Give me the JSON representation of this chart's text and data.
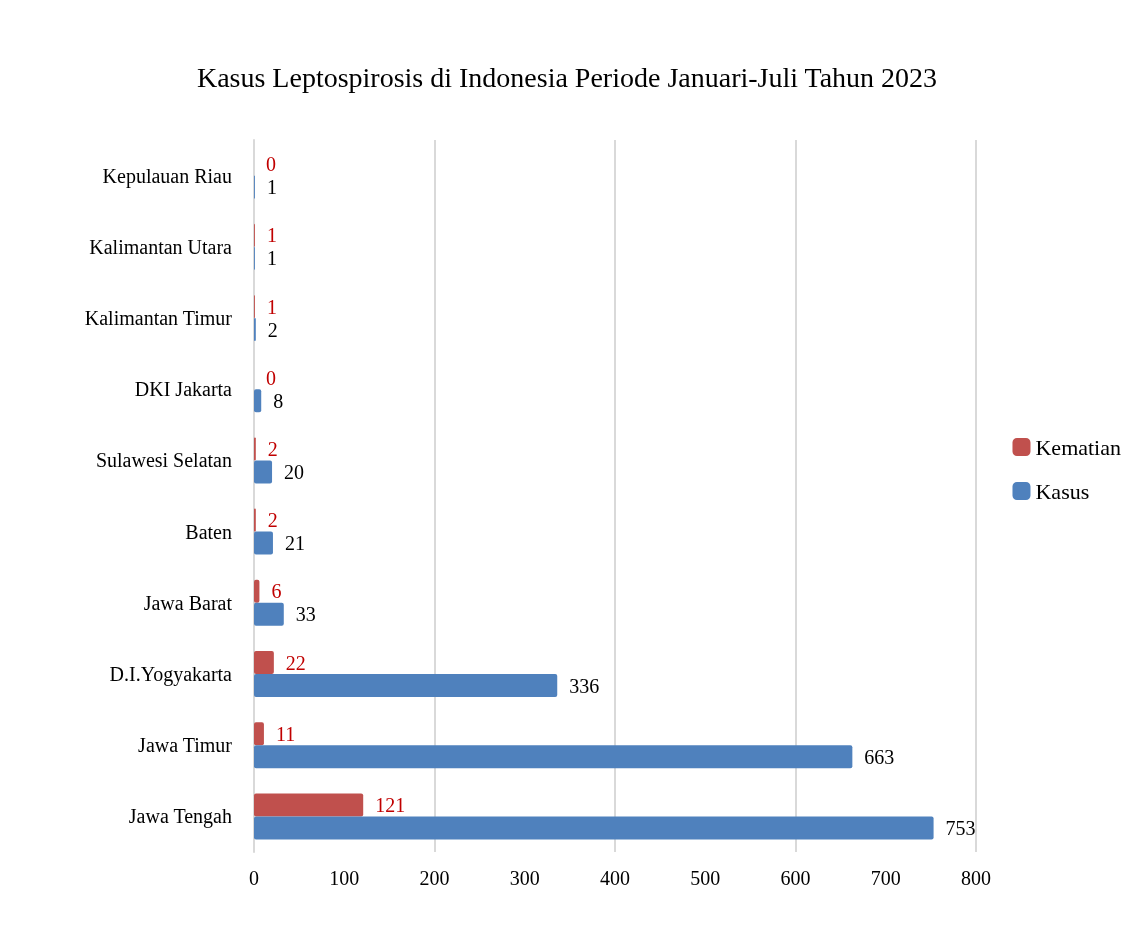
{
  "chart_data": {
    "type": "bar",
    "orientation": "horizontal",
    "title": "Kasus Leptospirosis di Indonesia Periode Januari-Juli Tahun 2023",
    "categories": [
      "Kepulauan Riau",
      "Kalimantan Utara",
      "Kalimantan Timur",
      "DKI Jakarta",
      "Sulawesi Selatan",
      "Baten",
      "Jawa Barat",
      "D.I.Yogyakarta",
      "Jawa Timur",
      "Jawa Tengah"
    ],
    "series": [
      {
        "name": "Kematian",
        "color": "#c0504d",
        "values": [
          0,
          1,
          1,
          0,
          2,
          2,
          6,
          22,
          11,
          121
        ]
      },
      {
        "name": "Kasus",
        "color": "#4f81bd",
        "values": [
          1,
          1,
          2,
          8,
          20,
          21,
          33,
          336,
          663,
          753
        ]
      }
    ],
    "xlim": [
      0,
      800
    ],
    "xticks": [
      0,
      100,
      200,
      300,
      400,
      500,
      600,
      700,
      800
    ],
    "grid": "x",
    "legend": "right",
    "data_labels": true
  }
}
